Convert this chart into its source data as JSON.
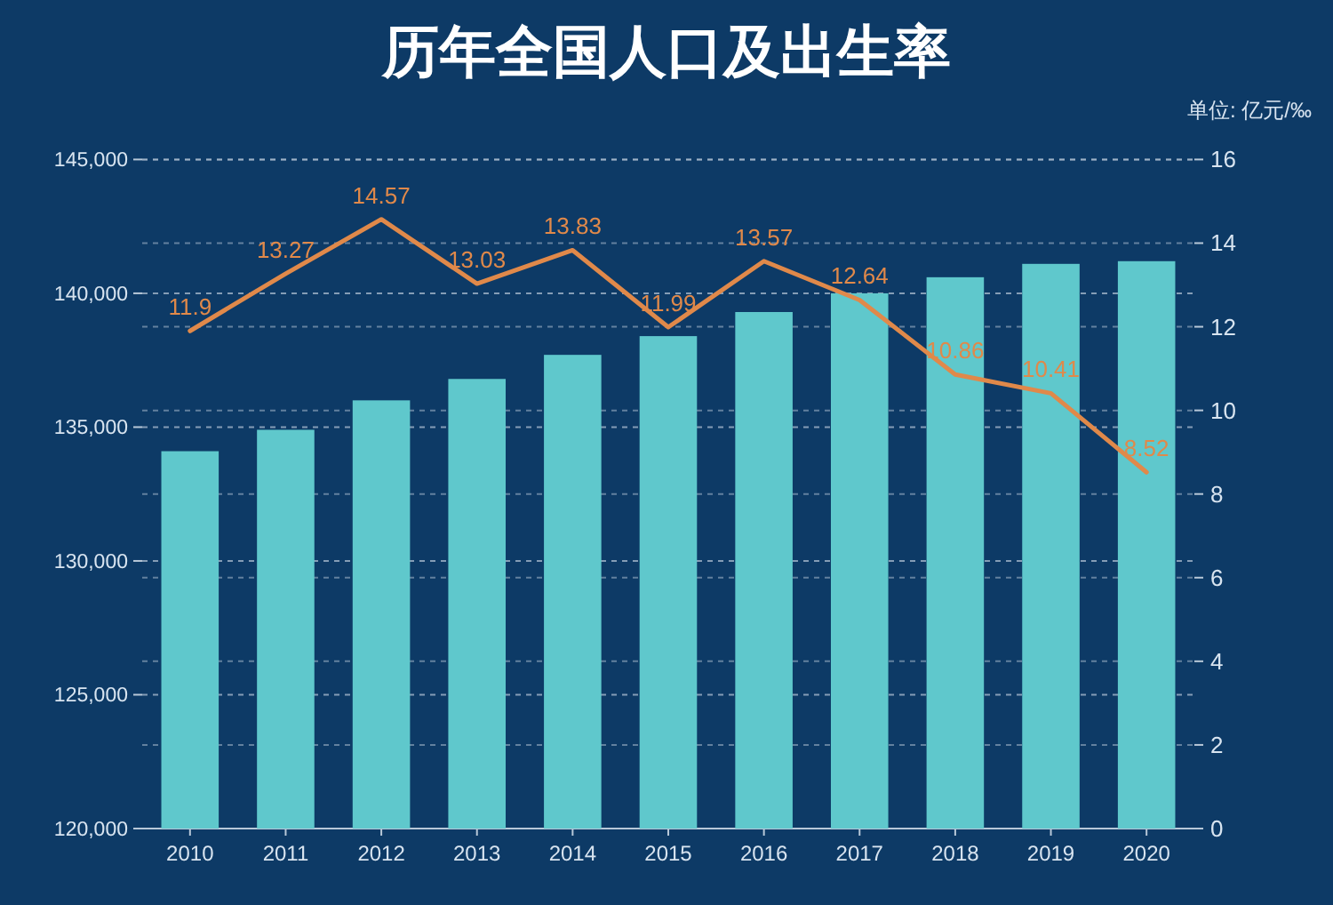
{
  "chart_data": {
    "type": "bar",
    "title": "历年全国人口及出生率",
    "annotations": [
      "单位: 亿元/‰"
    ],
    "categories": [
      "2010",
      "2011",
      "2012",
      "2013",
      "2014",
      "2015",
      "2016",
      "2017",
      "2018",
      "2019",
      "2020"
    ],
    "series": [
      {
        "color": "#5fc8cc",
        "values": [
          134100,
          134900,
          136000,
          136800,
          137700,
          138400,
          139300,
          140000,
          140600,
          141100,
          141200
        ]
      },
      {
        "type": "line",
        "axis": "y2",
        "color": "#e0894a",
        "values": [
          11.9,
          13.27,
          14.57,
          13.03,
          13.83,
          11.99,
          13.57,
          12.64,
          10.86,
          10.41,
          8.52
        ],
        "value_labels": [
          "11.9",
          "13.27",
          "14.57",
          "13.03",
          "13.83",
          "11.99",
          "13.57",
          "12.64",
          "10.86",
          "10.41",
          "8.52"
        ]
      }
    ],
    "ylim": [
      120000,
      145000
    ],
    "yticks": [
      {
        "value": 120000,
        "label": "120,000"
      },
      {
        "value": 125000,
        "label": "125,000"
      },
      {
        "value": 130000,
        "label": "130,000"
      },
      {
        "value": 135000,
        "label": "135,000"
      },
      {
        "value": 140000,
        "label": "140,000"
      },
      {
        "value": 145000,
        "label": "145,000"
      }
    ],
    "y2lim": [
      0,
      16
    ],
    "y2ticks": [
      0,
      2,
      4,
      6,
      8,
      10,
      12,
      14,
      16
    ],
    "grid": true
  }
}
